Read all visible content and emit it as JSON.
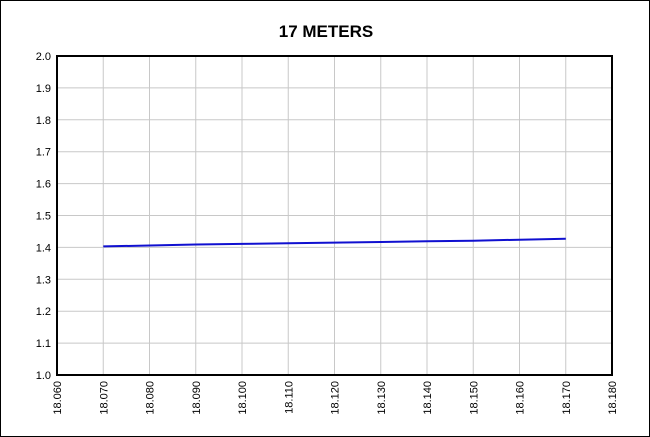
{
  "chart_data": {
    "type": "line",
    "title": "17 METERS",
    "xlabel": "",
    "ylabel": "",
    "xlim": [
      18.06,
      18.18
    ],
    "ylim": [
      1.0,
      2.0
    ],
    "x_ticks": [
      "18.060",
      "18.070",
      "18.080",
      "18.090",
      "18.100",
      "18.110",
      "18.120",
      "18.130",
      "18.140",
      "18.150",
      "18.160",
      "18.170",
      "18.180"
    ],
    "y_ticks": [
      "1.0",
      "1.1",
      "1.2",
      "1.3",
      "1.4",
      "1.5",
      "1.6",
      "1.7",
      "1.8",
      "1.9",
      "2.0"
    ],
    "grid": true,
    "legend": "none",
    "series": [
      {
        "color": "#1010d0",
        "x": [
          18.07,
          18.08,
          18.09,
          18.1,
          18.11,
          18.12,
          18.13,
          18.14,
          18.15,
          18.16,
          18.17
        ],
        "y": [
          1.403,
          1.406,
          1.409,
          1.411,
          1.413,
          1.415,
          1.417,
          1.419,
          1.421,
          1.424,
          1.427
        ]
      }
    ]
  }
}
